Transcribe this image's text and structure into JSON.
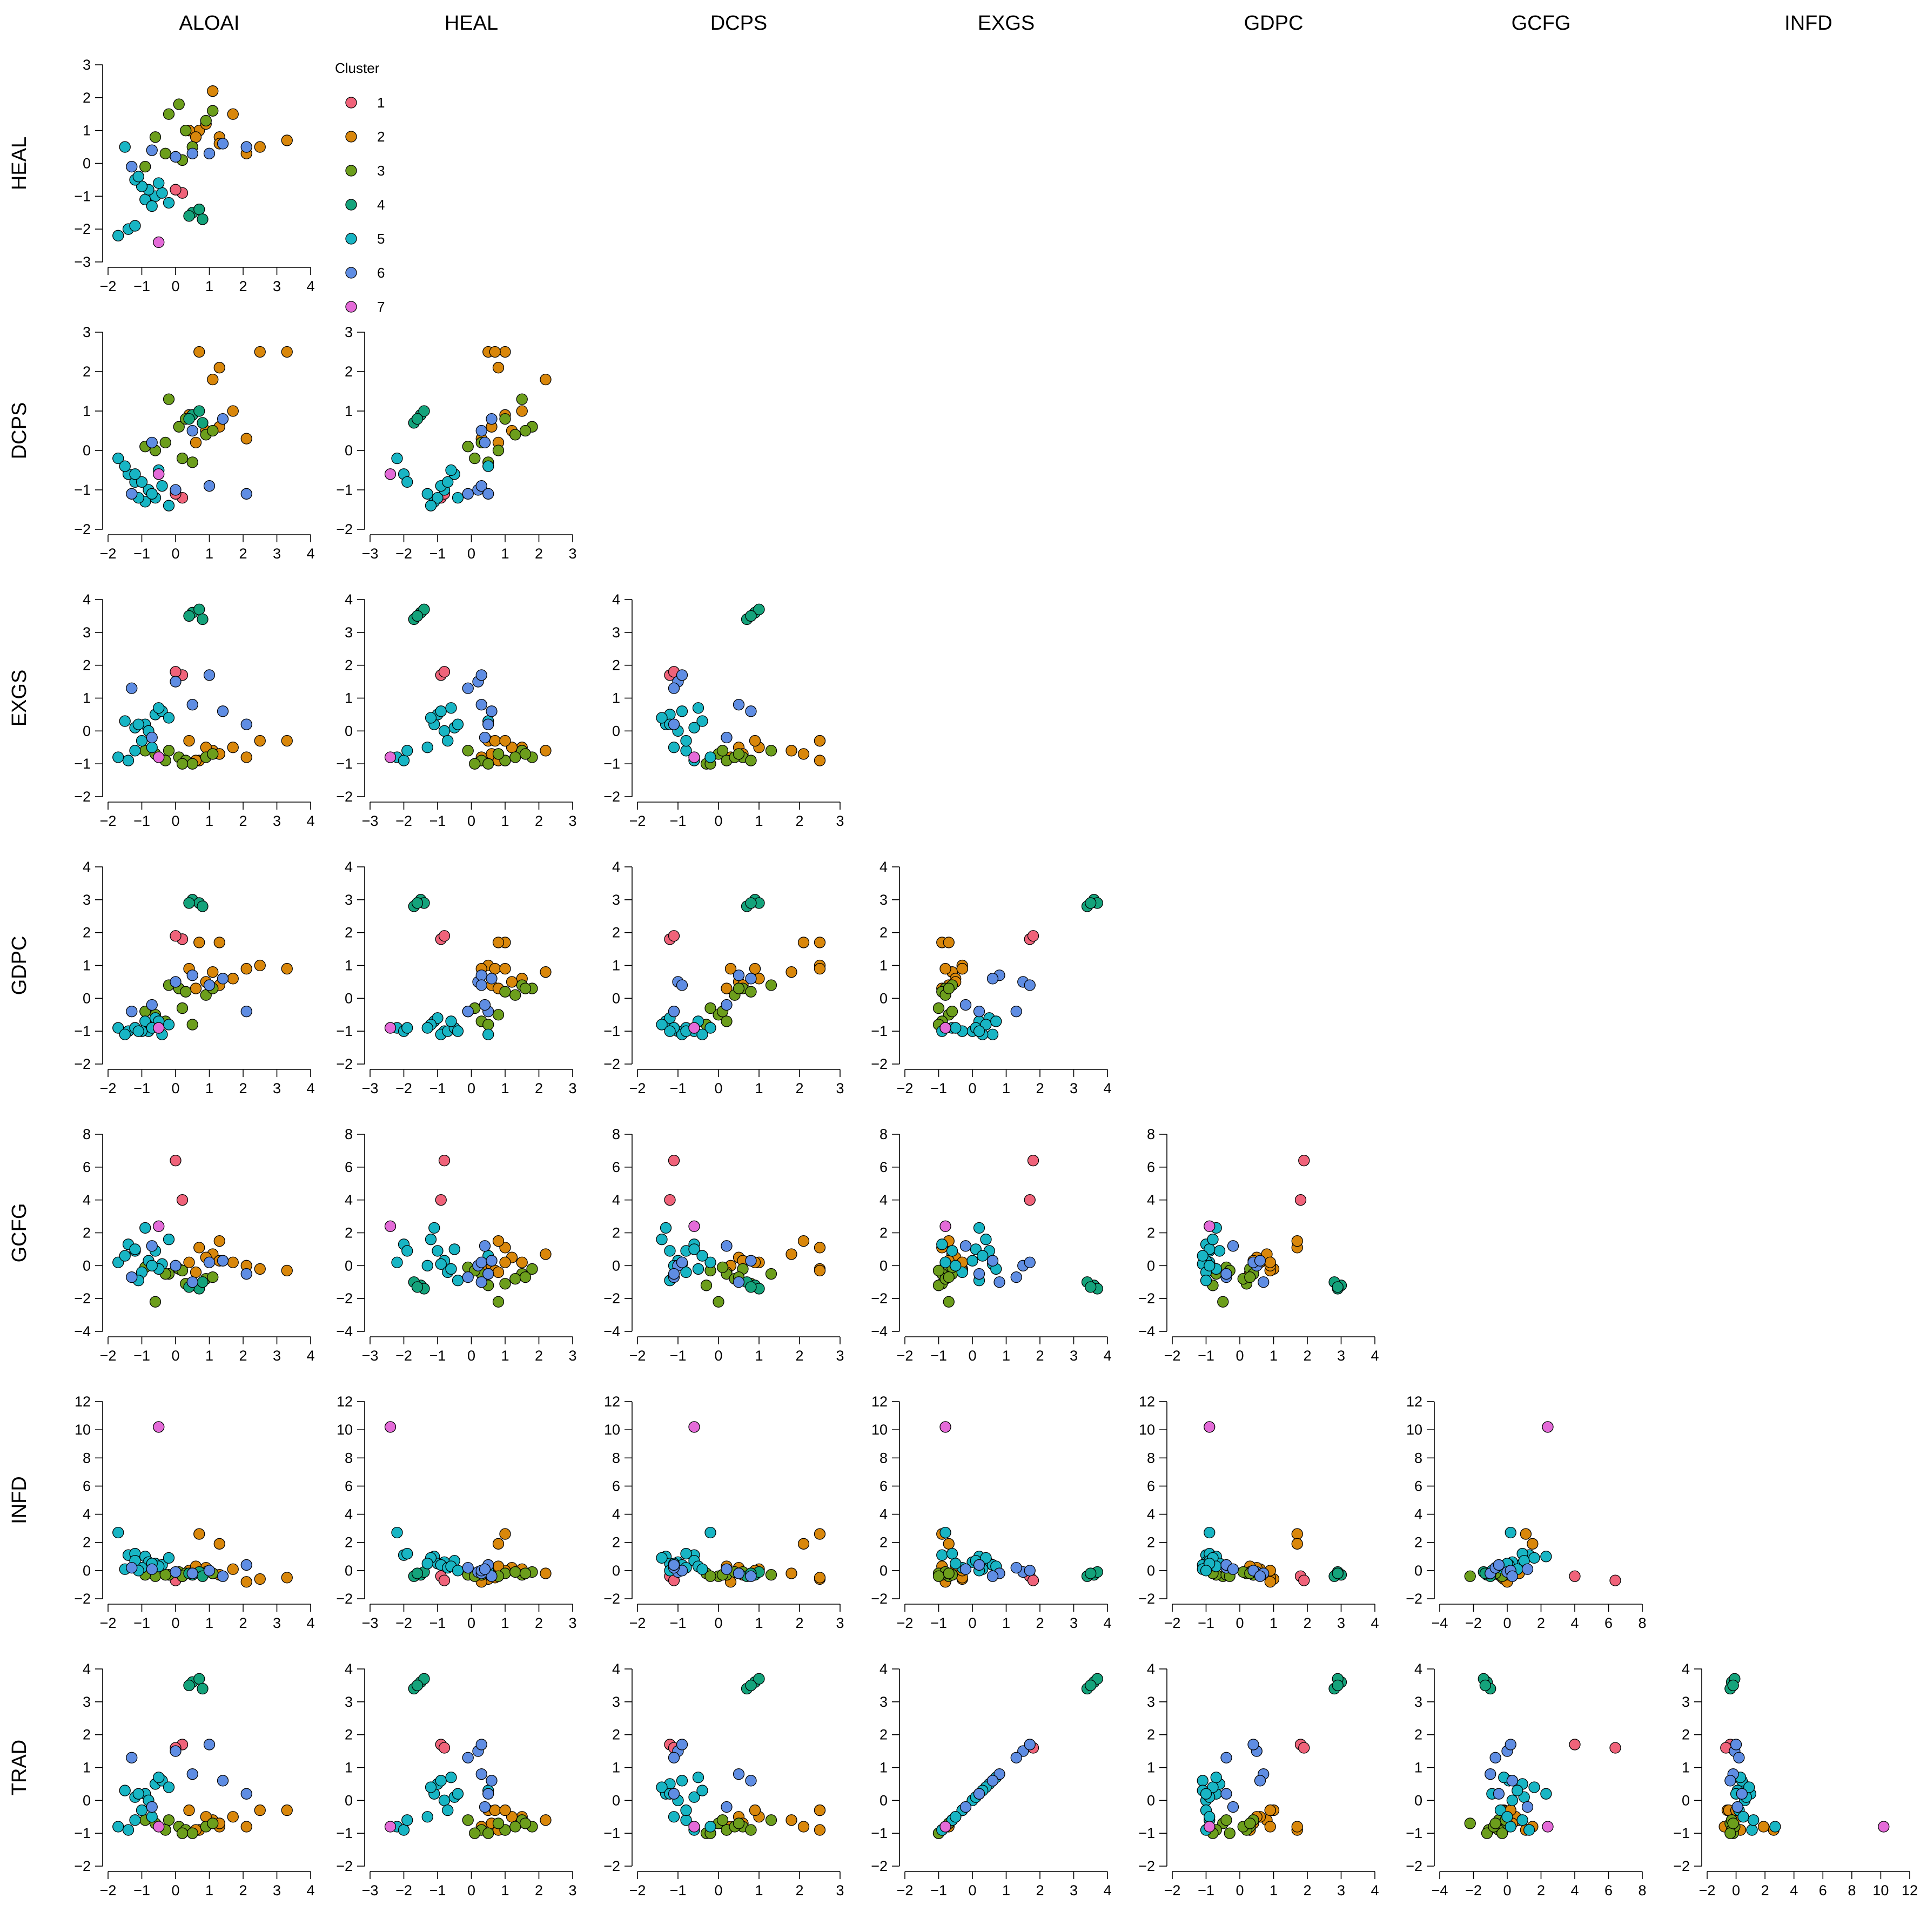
{
  "chart_data": {
    "type": "scatter-matrix",
    "title": "",
    "variables": [
      "ALOAI",
      "HEAL",
      "DCPS",
      "EXGS",
      "GDPC",
      "GCFG",
      "INFD",
      "TRAD"
    ],
    "column_titles": [
      "ALOAI",
      "HEAL",
      "DCPS",
      "EXGS",
      "GDPC",
      "GCFG",
      "INFD"
    ],
    "row_titles": [
      "HEAL",
      "DCPS",
      "EXGS",
      "GDPC",
      "GCFG",
      "INFD",
      "TRAD"
    ],
    "legend": {
      "title": "Cluster",
      "placement": "upper-left, beside first panel",
      "entries": [
        {
          "label": "1",
          "color": "#F0637A"
        },
        {
          "label": "2",
          "color": "#D9870B"
        },
        {
          "label": "3",
          "color": "#6C9E1C"
        },
        {
          "label": "4",
          "color": "#14A37B"
        },
        {
          "label": "5",
          "color": "#18B5C4"
        },
        {
          "label": "6",
          "color": "#5F8DE3"
        },
        {
          "label": "7",
          "color": "#E46BD8"
        }
      ]
    },
    "ranges": {
      "ALOAI": [
        -2,
        4
      ],
      "HEAL": [
        -3,
        3
      ],
      "DCPS": [
        -2,
        3
      ],
      "EXGS": [
        -2,
        4
      ],
      "GDPC": [
        -2,
        4
      ],
      "GCFG": [
        -4,
        8
      ],
      "INFD": [
        -2,
        12
      ],
      "TRAD": [
        -2,
        4
      ]
    },
    "ticks": {
      "ALOAI": [
        "-2",
        "-1",
        "0",
        "1",
        "2",
        "3",
        "4"
      ],
      "HEAL": [
        "-3",
        "-2",
        "-1",
        "0",
        "1",
        "2",
        "3"
      ],
      "DCPS": [
        "-2",
        "-1",
        "0",
        "1",
        "2",
        "3"
      ],
      "EXGS": [
        "-2",
        "-1",
        "0",
        "1",
        "2",
        "3",
        "4"
      ],
      "GDPC": [
        "-2",
        "-1",
        "0",
        "1",
        "2",
        "3",
        "4"
      ],
      "GCFG": [
        "-4",
        "-2",
        "0",
        "2",
        "4",
        "6",
        "8"
      ],
      "INFD": [
        "-2",
        "0",
        "2",
        "4",
        "6",
        "8",
        "10",
        "12"
      ],
      "TRAD": [
        "-2",
        "-1",
        "0",
        "1",
        "2",
        "3",
        "4"
      ]
    },
    "observations": [
      {
        "cluster": 1,
        "values": [
          0.2,
          -0.9,
          -1.2,
          1.7,
          1.8,
          4.0,
          -0.4,
          1.7
        ]
      },
      {
        "cluster": 1,
        "values": [
          0.0,
          -0.8,
          -1.1,
          1.8,
          1.9,
          6.4,
          -0.7,
          1.6
        ]
      },
      {
        "cluster": 2,
        "values": [
          0.7,
          1.0,
          2.5,
          -0.9,
          1.7,
          1.1,
          2.6,
          -0.9
        ]
      },
      {
        "cluster": 2,
        "values": [
          1.3,
          0.8,
          2.1,
          -0.7,
          1.7,
          1.5,
          1.9,
          -0.8
        ]
      },
      {
        "cluster": 2,
        "values": [
          2.5,
          0.5,
          2.5,
          -0.3,
          1.0,
          -0.2,
          -0.6,
          -0.3
        ]
      },
      {
        "cluster": 2,
        "values": [
          3.3,
          0.7,
          2.5,
          -0.3,
          0.9,
          -0.3,
          -0.5,
          -0.3
        ]
      },
      {
        "cluster": 2,
        "values": [
          1.1,
          2.2,
          1.8,
          -0.6,
          0.8,
          0.7,
          -0.2,
          -0.6
        ]
      },
      {
        "cluster": 2,
        "values": [
          1.7,
          1.5,
          1.0,
          -0.5,
          0.6,
          0.2,
          0.1,
          -0.5
        ]
      },
      {
        "cluster": 2,
        "values": [
          0.9,
          1.2,
          0.5,
          -0.5,
          0.5,
          0.5,
          0.2,
          -0.5
        ]
      },
      {
        "cluster": 2,
        "values": [
          1.3,
          0.6,
          0.6,
          -0.7,
          0.4,
          0.3,
          -0.3,
          -0.7
        ]
      },
      {
        "cluster": 2,
        "values": [
          2.1,
          0.3,
          0.3,
          -0.8,
          0.9,
          0.0,
          -0.8,
          -0.8
        ]
      },
      {
        "cluster": 2,
        "values": [
          0.4,
          1.0,
          0.9,
          -0.3,
          0.9,
          0.2,
          0.0,
          -0.3
        ]
      },
      {
        "cluster": 2,
        "values": [
          0.6,
          0.8,
          0.2,
          -0.9,
          0.3,
          -0.4,
          0.3,
          -0.9
        ]
      },
      {
        "cluster": 3,
        "values": [
          0.1,
          1.8,
          0.6,
          -0.8,
          0.3,
          -0.2,
          -0.1,
          -0.8
        ]
      },
      {
        "cluster": 3,
        "values": [
          -0.2,
          1.5,
          1.3,
          -0.6,
          0.4,
          -0.5,
          -0.3,
          -0.6
        ]
      },
      {
        "cluster": 3,
        "values": [
          0.3,
          1.0,
          0.8,
          -0.9,
          0.2,
          -1.1,
          -0.2,
          -0.9
        ]
      },
      {
        "cluster": 3,
        "values": [
          -0.6,
          0.8,
          0.0,
          -0.7,
          -0.5,
          -2.2,
          -0.4,
          -0.7
        ]
      },
      {
        "cluster": 3,
        "values": [
          -0.3,
          0.3,
          0.2,
          -0.9,
          -0.7,
          -0.5,
          -0.3,
          -0.9
        ]
      },
      {
        "cluster": 3,
        "values": [
          0.5,
          0.5,
          -0.3,
          -1.0,
          -0.8,
          -1.2,
          -0.2,
          -1.0
        ]
      },
      {
        "cluster": 3,
        "values": [
          0.9,
          1.3,
          0.4,
          -0.8,
          0.1,
          -0.8,
          -0.1,
          -0.8
        ]
      },
      {
        "cluster": 3,
        "values": [
          -0.9,
          -0.1,
          0.1,
          -0.6,
          -0.4,
          -0.1,
          -0.3,
          -0.6
        ]
      },
      {
        "cluster": 3,
        "values": [
          0.2,
          0.1,
          -0.2,
          -1.0,
          -0.3,
          -0.3,
          -0.4,
          -1.0
        ]
      },
      {
        "cluster": 3,
        "values": [
          1.1,
          1.6,
          0.5,
          -0.7,
          0.3,
          -0.7,
          -0.2,
          -0.7
        ]
      },
      {
        "cluster": 4,
        "values": [
          0.5,
          -1.5,
          0.9,
          3.6,
          3.0,
          -1.2,
          -0.3,
          3.6
        ]
      },
      {
        "cluster": 4,
        "values": [
          0.7,
          -1.4,
          1.0,
          3.7,
          2.9,
          -1.4,
          -0.1,
          3.7
        ]
      },
      {
        "cluster": 4,
        "values": [
          0.8,
          -1.7,
          0.7,
          3.4,
          2.8,
          -1.0,
          -0.4,
          3.4
        ]
      },
      {
        "cluster": 4,
        "values": [
          0.4,
          -1.6,
          0.8,
          3.5,
          2.9,
          -1.3,
          -0.2,
          3.5
        ]
      },
      {
        "cluster": 5,
        "values": [
          -1.7,
          -2.2,
          -0.2,
          -0.8,
          -0.9,
          0.2,
          2.7,
          -0.8
        ]
      },
      {
        "cluster": 5,
        "values": [
          -1.4,
          -2.0,
          -0.6,
          -0.9,
          -1.0,
          1.3,
          1.1,
          -0.9
        ]
      },
      {
        "cluster": 5,
        "values": [
          -1.2,
          -1.9,
          -0.8,
          -0.6,
          -0.9,
          0.9,
          1.2,
          -0.6
        ]
      },
      {
        "cluster": 5,
        "values": [
          -0.9,
          -1.1,
          -1.3,
          0.2,
          -0.7,
          2.3,
          1.0,
          0.2
        ]
      },
      {
        "cluster": 5,
        "values": [
          -0.6,
          -1.0,
          -1.2,
          0.5,
          -0.6,
          0.9,
          0.5,
          0.5
        ]
      },
      {
        "cluster": 5,
        "values": [
          -0.8,
          -0.8,
          -1.0,
          0.0,
          -1.0,
          0.3,
          0.6,
          0.0
        ]
      },
      {
        "cluster": 5,
        "values": [
          -0.4,
          -0.9,
          -0.9,
          0.6,
          -1.1,
          0.1,
          0.4,
          0.6
        ]
      },
      {
        "cluster": 5,
        "values": [
          -1.0,
          -0.7,
          -0.8,
          -0.3,
          -1.0,
          -0.4,
          0.2,
          -0.3
        ]
      },
      {
        "cluster": 5,
        "values": [
          -1.2,
          -0.5,
          -0.6,
          0.1,
          -0.9,
          1.0,
          0.7,
          0.1
        ]
      },
      {
        "cluster": 5,
        "values": [
          -0.2,
          -1.2,
          -1.4,
          0.4,
          -0.8,
          1.6,
          0.9,
          0.4
        ]
      },
      {
        "cluster": 5,
        "values": [
          -0.5,
          -0.6,
          -0.5,
          0.7,
          -0.7,
          -0.2,
          0.3,
          0.7
        ]
      },
      {
        "cluster": 5,
        "values": [
          -1.5,
          0.5,
          -0.4,
          0.3,
          -1.1,
          0.6,
          0.1,
          0.3
        ]
      },
      {
        "cluster": 5,
        "values": [
          -0.7,
          -1.3,
          -1.1,
          -0.5,
          -0.9,
          0.0,
          0.5,
          -0.5
        ]
      },
      {
        "cluster": 5,
        "values": [
          -1.1,
          -0.4,
          -1.2,
          0.2,
          -1.0,
          -0.9,
          0.0,
          0.2
        ]
      },
      {
        "cluster": 6,
        "values": [
          0.0,
          0.2,
          -1.0,
          1.5,
          0.5,
          0.0,
          -0.1,
          1.5
        ]
      },
      {
        "cluster": 6,
        "values": [
          0.5,
          0.3,
          0.5,
          0.8,
          0.7,
          -1.0,
          -0.2,
          0.8
        ]
      },
      {
        "cluster": 6,
        "values": [
          1.0,
          0.3,
          -0.9,
          1.7,
          0.4,
          0.2,
          0.0,
          1.7
        ]
      },
      {
        "cluster": 6,
        "values": [
          -1.3,
          -0.1,
          -1.1,
          1.3,
          -0.4,
          -0.7,
          0.2,
          1.3
        ]
      },
      {
        "cluster": 6,
        "values": [
          2.1,
          0.5,
          -1.1,
          0.2,
          -0.4,
          -0.5,
          0.4,
          0.2
        ]
      },
      {
        "cluster": 6,
        "values": [
          1.4,
          0.6,
          0.8,
          0.6,
          0.6,
          0.3,
          -0.4,
          0.6
        ]
      },
      {
        "cluster": 6,
        "values": [
          -0.7,
          0.4,
          0.2,
          -0.2,
          -0.2,
          1.2,
          0.1,
          -0.2
        ]
      },
      {
        "cluster": 7,
        "values": [
          -0.5,
          -2.4,
          -0.6,
          -0.8,
          -0.9,
          2.4,
          10.2,
          -0.8
        ]
      }
    ]
  }
}
